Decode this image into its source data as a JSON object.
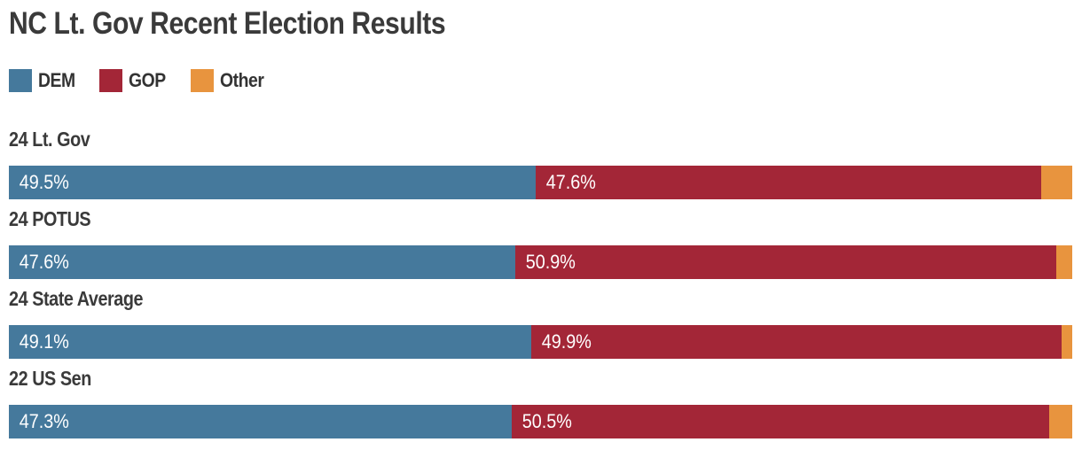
{
  "title": "NC Lt. Gov Recent Election Results",
  "colors": {
    "dem": "#45799c",
    "gop": "#a32637",
    "other": "#e8943e",
    "heading_text": "#3a3a3a",
    "legend_text": "#333333",
    "value_text": "#ffffff"
  },
  "legend": {
    "items": [
      {
        "label": "DEM",
        "key": "dem"
      },
      {
        "label": "GOP",
        "key": "gop"
      },
      {
        "label": "Other",
        "key": "other"
      }
    ]
  },
  "chart_data": {
    "type": "bar",
    "orientation": "horizontal",
    "stacked": true,
    "unit": "percent",
    "title": "NC Lt. Gov Recent Election Results",
    "categories": [
      "24 Lt. Gov",
      "24 POTUS",
      "24 State Average",
      "22 US Sen"
    ],
    "series": [
      {
        "name": "DEM",
        "color": "#45799c",
        "values": [
          49.5,
          47.6,
          49.1,
          47.3
        ]
      },
      {
        "name": "GOP",
        "color": "#a32637",
        "values": [
          47.6,
          50.9,
          49.9,
          50.5
        ]
      },
      {
        "name": "Other",
        "color": "#e8943e",
        "values": [
          2.9,
          1.5,
          1.0,
          2.2
        ],
        "labeled": false
      }
    ],
    "xlim": [
      0,
      100
    ],
    "grid": false,
    "legend_position": "top",
    "value_labels": "inside-left"
  },
  "rows": [
    {
      "label": "24 Lt. Gov",
      "dem": 49.5,
      "gop": 47.6,
      "other": 2.9,
      "dem_label": "49.5%",
      "gop_label": "47.6%"
    },
    {
      "label": "24 POTUS",
      "dem": 47.6,
      "gop": 50.9,
      "other": 1.5,
      "dem_label": "47.6%",
      "gop_label": "50.9%"
    },
    {
      "label": "24 State Average",
      "dem": 49.1,
      "gop": 49.9,
      "other": 1.0,
      "dem_label": "49.1%",
      "gop_label": "49.9%"
    },
    {
      "label": "22 US Sen",
      "dem": 47.3,
      "gop": 50.5,
      "other": 2.2,
      "dem_label": "47.3%",
      "gop_label": "50.5%"
    }
  ]
}
